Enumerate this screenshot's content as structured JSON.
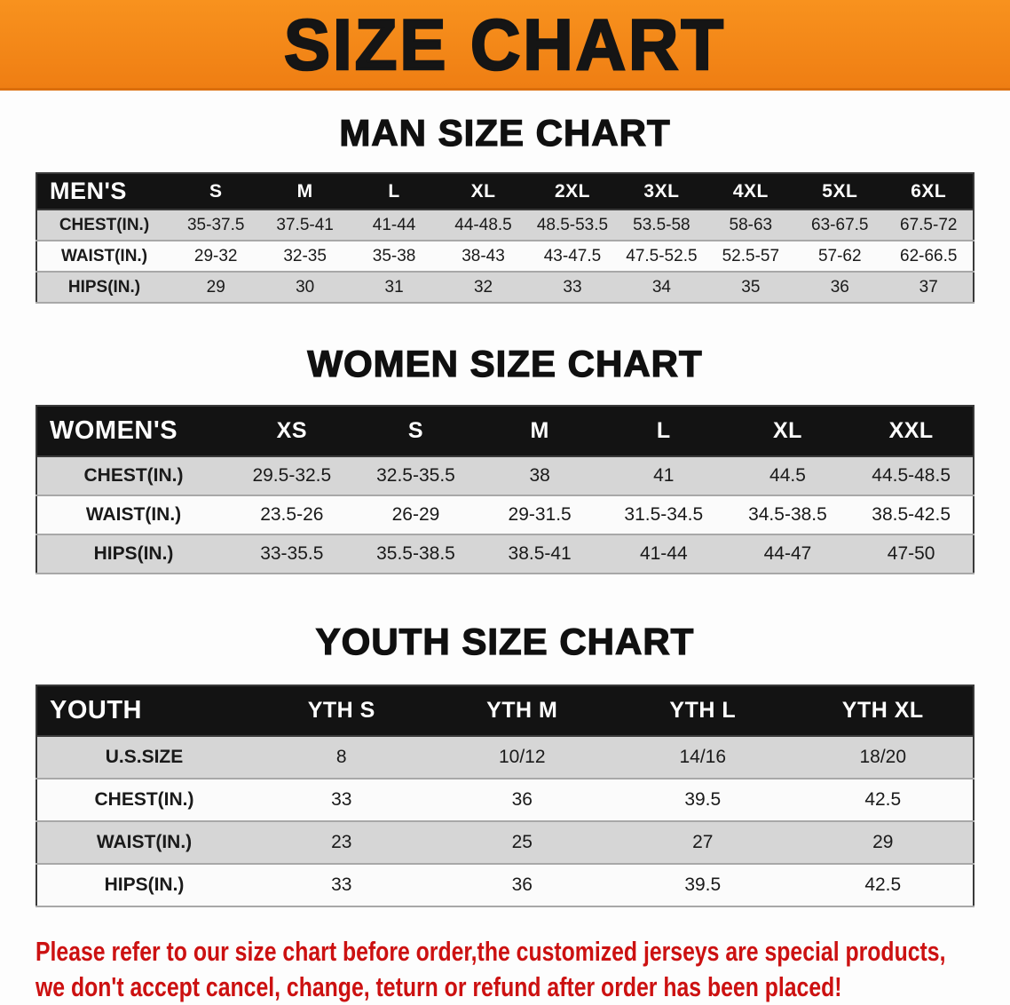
{
  "banner": {
    "title": "SIZE CHART",
    "bg_color": "#f5821f",
    "text_color": "#151515"
  },
  "sections": [
    {
      "id": "men",
      "heading": "MAN SIZE CHART",
      "table": {
        "header": [
          "MEN'S",
          "S",
          "M",
          "L",
          "XL",
          "2XL",
          "3XL",
          "4XL",
          "5XL",
          "6XL"
        ],
        "rows": [
          [
            "CHEST(IN.)",
            "35-37.5",
            "37.5-41",
            "41-44",
            "44-48.5",
            "48.5-53.5",
            "53.5-58",
            "58-63",
            "63-67.5",
            "67.5-72"
          ],
          [
            "WAIST(IN.)",
            "29-32",
            "32-35",
            "35-38",
            "38-43",
            "43-47.5",
            "47.5-52.5",
            "52.5-57",
            "57-62",
            "62-66.5"
          ],
          [
            "HIPS(IN.)",
            "29",
            "30",
            "31",
            "32",
            "33",
            "34",
            "35",
            "36",
            "37"
          ]
        ]
      }
    },
    {
      "id": "women",
      "heading": "WOMEN SIZE CHART",
      "table": {
        "header": [
          "WOMEN'S",
          "XS",
          "S",
          "M",
          "L",
          "XL",
          "XXL"
        ],
        "rows": [
          [
            "CHEST(IN.)",
            "29.5-32.5",
            "32.5-35.5",
            "38",
            "41",
            "44.5",
            "44.5-48.5"
          ],
          [
            "WAIST(IN.)",
            "23.5-26",
            "26-29",
            "29-31.5",
            "31.5-34.5",
            "34.5-38.5",
            "38.5-42.5"
          ],
          [
            "HIPS(IN.)",
            "33-35.5",
            "35.5-38.5",
            "38.5-41",
            "41-44",
            "44-47",
            "47-50"
          ]
        ]
      }
    },
    {
      "id": "youth",
      "heading": "YOUTH SIZE CHART",
      "table": {
        "header": [
          "YOUTH",
          "YTH S",
          "YTH M",
          "YTH L",
          "YTH XL"
        ],
        "rows": [
          [
            "U.S.SIZE",
            "8",
            "10/12",
            "14/16",
            "18/20"
          ],
          [
            "CHEST(IN.)",
            "33",
            "36",
            "39.5",
            "42.5"
          ],
          [
            "WAIST(IN.)",
            "23",
            "25",
            "27",
            "29"
          ],
          [
            "HIPS(IN.)",
            "33",
            "36",
            "39.5",
            "42.5"
          ]
        ]
      }
    }
  ],
  "disclaimer": {
    "line1": "Please refer to our size chart before order,the customized jerseys are special products,",
    "line2": "we don't accept cancel, change, teturn or refund after order has been placed!",
    "color": "#cc1111"
  }
}
